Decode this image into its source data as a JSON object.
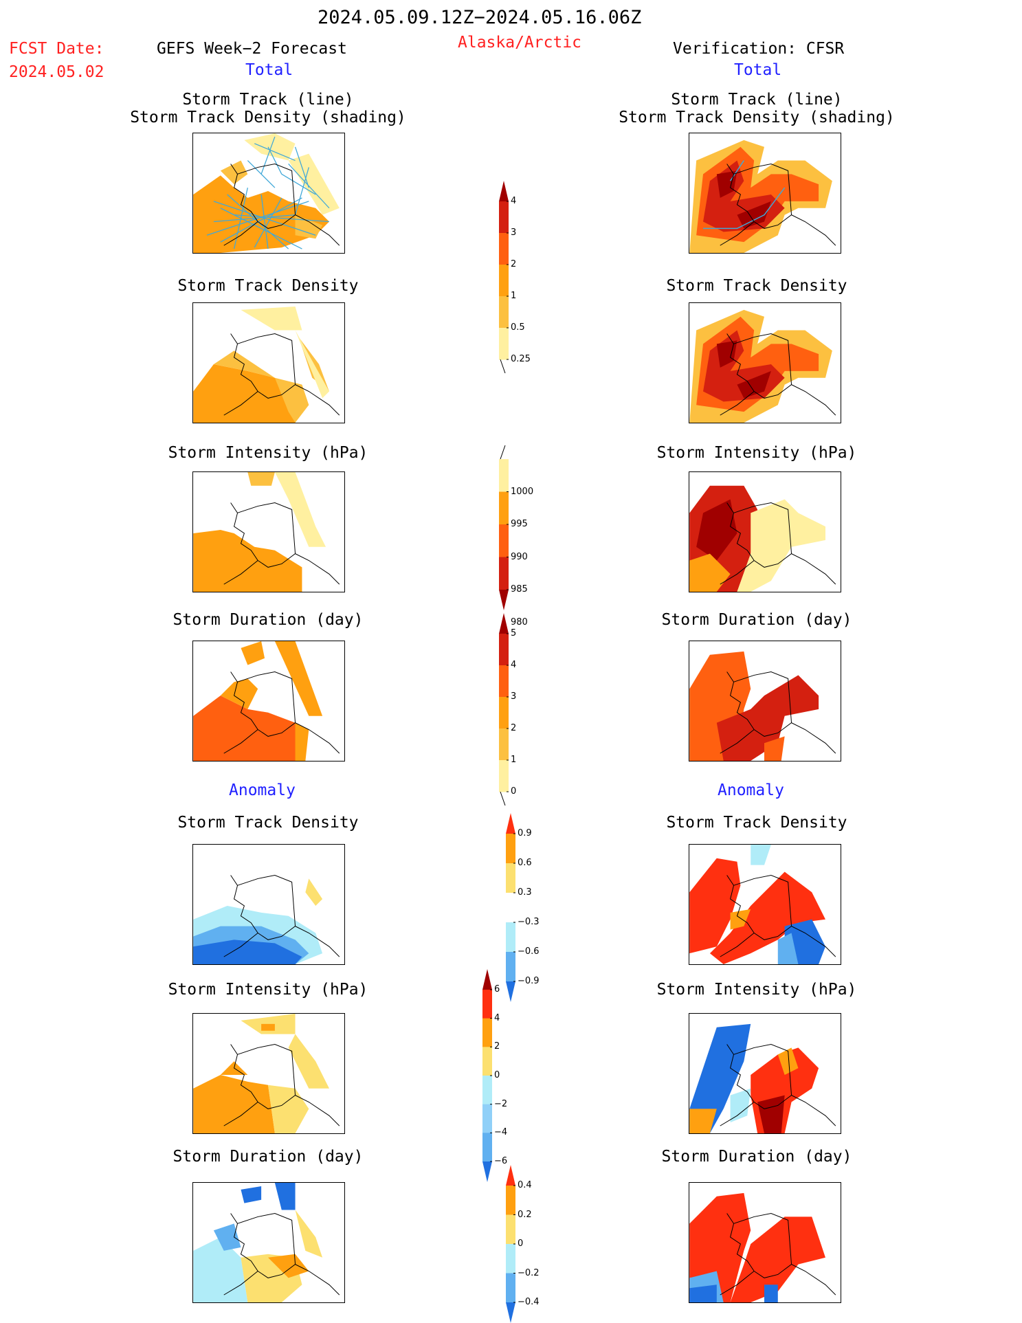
{
  "header": {
    "date_range": "2024.05.09.12Z−2024.05.16.06Z",
    "fcst_label": "FCST Date:",
    "fcst_date": "2024.05.02",
    "left_title": "GEFS Week−2 Forecast",
    "region": "Alaska/Arctic",
    "right_title": "Verification: CFSR",
    "total_label": "Total",
    "anomaly_label": "Anomaly"
  },
  "panel_titles": {
    "track_line": "Storm Track (line)",
    "track_density_shading": "Storm Track Density (shading)",
    "track_density": "Storm Track Density",
    "intensity": "Storm Intensity (hPa)",
    "duration": "Storm Duration (day)"
  },
  "colorbars": {
    "density": {
      "labels": [
        "4",
        "3",
        "2",
        "1",
        "0.5",
        "0.25"
      ],
      "colors": [
        "#a00000",
        "#d42010",
        "#ff6010",
        "#ffa010",
        "#fcc040",
        "#fff0a0"
      ]
    },
    "intensity": {
      "labels": [
        "1000",
        "995",
        "990",
        "985",
        "980"
      ],
      "colors": [
        "#fff0a0",
        "#ffa010",
        "#ff6010",
        "#d42010",
        "#a00000"
      ]
    },
    "duration": {
      "labels": [
        "5",
        "4",
        "3",
        "2",
        "1",
        "0"
      ],
      "colors": [
        "#a00000",
        "#d42010",
        "#ff6010",
        "#ffa010",
        "#fcc040",
        "#fff0a0"
      ]
    },
    "anom_density": {
      "labels": [
        "0.9",
        "0.6",
        "0.3",
        "−0.3",
        "−0.6",
        "−0.9"
      ],
      "colors": [
        "#ff3010",
        "#ffa010",
        "#fce070",
        "#ffffff",
        "#b0ecf8",
        "#60b0f0",
        "#2070e0"
      ]
    },
    "anom_intensity": {
      "labels": [
        "6",
        "4",
        "2",
        "0",
        "−2",
        "−4",
        "−6"
      ],
      "colors": [
        "#a00000",
        "#ff3010",
        "#ffa010",
        "#fce070",
        "#b0ecf8",
        "#90d0f8",
        "#60b0f0",
        "#2070e0"
      ]
    },
    "anom_duration": {
      "labels": [
        "0.4",
        "0.2",
        "0",
        "−0.2",
        "−0.4"
      ],
      "colors": [
        "#ff3010",
        "#ffa010",
        "#fce070",
        "#b0ecf8",
        "#60b0f0",
        "#2070e0"
      ]
    }
  },
  "palette": {
    "dark_red": "#a00000",
    "red": "#d42010",
    "orange_red": "#ff6010",
    "orange": "#ffa010",
    "light_orange": "#fcc040",
    "pale_yellow": "#fff0a0",
    "light_blue": "#b0ecf8",
    "mid_blue": "#60b0f0",
    "dark_blue": "#2070e0",
    "track_line": "#40a8d8"
  }
}
